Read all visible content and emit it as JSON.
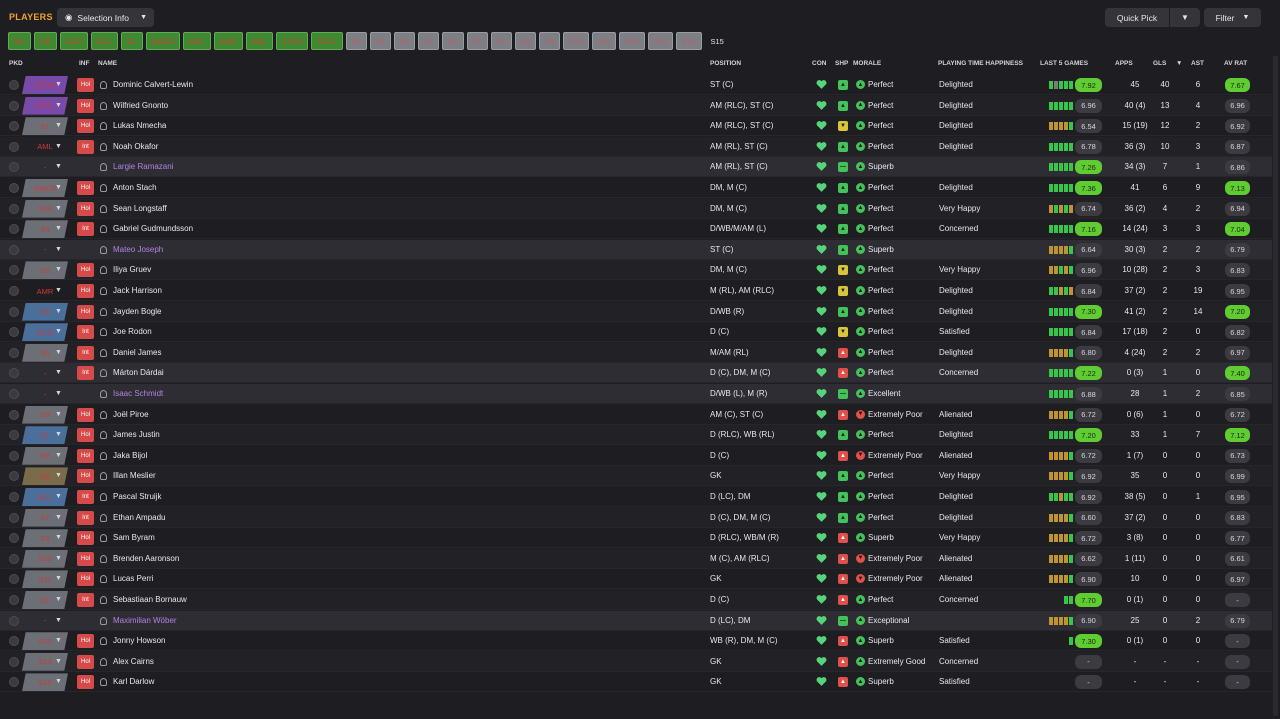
{
  "header": {
    "title": "PLAYERS",
    "selection_label": "Selection Info",
    "quick_pick": "Quick Pick",
    "filter": "Filter"
  },
  "positions": [
    {
      "label": "GK",
      "style": "g"
    },
    {
      "label": "DR",
      "style": "g"
    },
    {
      "label": "DCR",
      "style": "g"
    },
    {
      "label": "DCL",
      "style": "g"
    },
    {
      "label": "DL",
      "style": "g"
    },
    {
      "label": "DMCR",
      "style": "g"
    },
    {
      "label": "MCL",
      "style": "g"
    },
    {
      "label": "AMR",
      "style": "g"
    },
    {
      "label": "AML",
      "style": "g"
    },
    {
      "label": "STCR",
      "style": "g"
    },
    {
      "label": "STCL",
      "style": "g"
    },
    {
      "label": "S1",
      "style": "x"
    },
    {
      "label": "S2",
      "style": "x"
    },
    {
      "label": "S3",
      "style": "x"
    },
    {
      "label": "S4",
      "style": "x"
    },
    {
      "label": "S5",
      "style": "x"
    },
    {
      "label": "S6",
      "style": "x"
    },
    {
      "label": "S7",
      "style": "x"
    },
    {
      "label": "S8",
      "style": "x"
    },
    {
      "label": "S9",
      "style": "x"
    },
    {
      "label": "S10",
      "style": "x"
    },
    {
      "label": "S11",
      "style": "x"
    },
    {
      "label": "S12",
      "style": "x"
    },
    {
      "label": "S13",
      "style": "x"
    },
    {
      "label": "S14",
      "style": "x"
    },
    {
      "label": "S15",
      "style": "s"
    }
  ],
  "columns": {
    "pkd": "PKD",
    "inf": "INF",
    "name": "NAME",
    "position": "POSITION",
    "con": "CON",
    "shp": "SHP",
    "morale": "MORALE",
    "pt_happiness": "PLAYING TIME HAPPINESS",
    "last5": "LAST 5 GAMES",
    "apps": "APPS",
    "gls": "GLS",
    "ast": "AST",
    "av_rat": "AV RAT"
  },
  "colors": {
    "accent": "#f2a32b",
    "rating_high": "#5fcc31",
    "inf_badge": "#d64a4a",
    "loan_name": "#b482e0"
  },
  "players": [
    {
      "pkd": "STCR",
      "pkd_color": "#7a4aa8",
      "inf": "Hol",
      "name": "Dominic Calvert-Lewin",
      "pos": "ST (C)",
      "shp": "up",
      "morale": "Perfect",
      "morale_type": "good",
      "pt": "Delighted",
      "l5": [
        "a",
        "c",
        "a",
        "a",
        "a"
      ],
      "rating": "7.92",
      "rating_hi": true,
      "apps": "45",
      "gls": "40",
      "ast": "6",
      "av": "7.67",
      "av_hi": true,
      "row": ""
    },
    {
      "pkd": "STCL",
      "pkd_color": "#7a4aa8",
      "inf": "Hol",
      "name": "Wilfried Gnonto",
      "pos": "AM (RLC), ST (C)",
      "shp": "up",
      "morale": "Perfect",
      "morale_type": "good",
      "pt": "Delighted",
      "l5": [
        "a",
        "a",
        "a",
        "a",
        "a"
      ],
      "rating": "6.96",
      "rating_hi": false,
      "apps": "40 (4)",
      "gls": "13",
      "ast": "4",
      "av": "6.96",
      "av_hi": false,
      "row": "alt"
    },
    {
      "pkd": "S1",
      "pkd_color": "#6c6f75",
      "inf": "Hol",
      "name": "Lukas Nmecha",
      "pos": "AM (RLC), ST (C)",
      "shp": "down",
      "morale": "Perfect",
      "morale_type": "good",
      "pt": "Delighted",
      "l5": [
        "b",
        "b",
        "b",
        "b",
        "a"
      ],
      "rating": "6.54",
      "rating_hi": false,
      "apps": "15 (19)",
      "gls": "12",
      "ast": "2",
      "av": "6.92",
      "av_hi": false,
      "row": ""
    },
    {
      "pkd": "AML",
      "pkd_color": "none",
      "inf": "Int",
      "name": "Noah Okafor",
      "pos": "AM (RL), ST (C)",
      "shp": "up",
      "morale": "Perfect",
      "morale_type": "good",
      "pt": "Delighted",
      "l5": [
        "a",
        "a",
        "a",
        "a",
        "a"
      ],
      "rating": "6.78",
      "rating_hi": false,
      "apps": "36 (3)",
      "gls": "10",
      "ast": "3",
      "av": "6.87",
      "av_hi": false,
      "row": "alt"
    },
    {
      "pkd": "-",
      "pkd_color": "none",
      "inf": "",
      "name": "Largie Ramazani",
      "pos": "AM (RL), ST (C)",
      "shp": "flat",
      "morale": "Superb",
      "morale_type": "good",
      "pt": "",
      "l5": [
        "a",
        "a",
        "a",
        "a",
        "a"
      ],
      "rating": "7.26",
      "rating_hi": true,
      "apps": "34 (3)",
      "gls": "7",
      "ast": "1",
      "av": "6.86",
      "av_hi": false,
      "row": "gray",
      "loan": true
    },
    {
      "pkd": "DMCR",
      "pkd_color": "#6c6f75",
      "inf": "Hol",
      "name": "Anton Stach",
      "pos": "DM, M (C)",
      "shp": "up",
      "morale": "Perfect",
      "morale_type": "good",
      "pt": "Delighted",
      "l5": [
        "a",
        "a",
        "a",
        "a",
        "a"
      ],
      "rating": "7.36",
      "rating_hi": true,
      "apps": "41",
      "gls": "6",
      "ast": "9",
      "av": "7.13",
      "av_hi": true,
      "row": ""
    },
    {
      "pkd": "S14",
      "pkd_color": "#6c6f75",
      "inf": "Hol",
      "name": "Sean Longstaff",
      "pos": "DM, M (C)",
      "shp": "up",
      "morale": "Perfect",
      "morale_type": "good",
      "pt": "Very Happy",
      "l5": [
        "b",
        "a",
        "b",
        "a",
        "b"
      ],
      "rating": "6.74",
      "rating_hi": false,
      "apps": "36 (2)",
      "gls": "4",
      "ast": "2",
      "av": "6.94",
      "av_hi": false,
      "row": "alt"
    },
    {
      "pkd": "S4",
      "pkd_color": "#6c6f75",
      "inf": "Int",
      "name": "Gabriel Gudmundsson",
      "pos": "D/WB/M/AM (L)",
      "shp": "up",
      "morale": "Perfect",
      "morale_type": "good",
      "pt": "Concerned",
      "l5": [
        "a",
        "a",
        "a",
        "a",
        "a"
      ],
      "rating": "7.16",
      "rating_hi": true,
      "apps": "14 (24)",
      "gls": "3",
      "ast": "3",
      "av": "7.04",
      "av_hi": true,
      "row": ""
    },
    {
      "pkd": "-",
      "pkd_color": "none",
      "inf": "",
      "name": "Mateo Joseph",
      "pos": "ST (C)",
      "shp": "up",
      "morale": "Superb",
      "morale_type": "good",
      "pt": "",
      "l5": [
        "b",
        "b",
        "b",
        "b",
        "a"
      ],
      "rating": "6.64",
      "rating_hi": false,
      "apps": "30 (3)",
      "gls": "2",
      "ast": "2",
      "av": "6.79",
      "av_hi": false,
      "row": "gray",
      "loan": true
    },
    {
      "pkd": "S5",
      "pkd_color": "#6c6f75",
      "inf": "Hol",
      "name": "Iliya Gruev",
      "pos": "DM, M (C)",
      "shp": "down",
      "morale": "Perfect",
      "morale_type": "good",
      "pt": "Very Happy",
      "l5": [
        "b",
        "b",
        "a",
        "b",
        "a"
      ],
      "rating": "6.96",
      "rating_hi": false,
      "apps": "10 (28)",
      "gls": "2",
      "ast": "3",
      "av": "6.83",
      "av_hi": false,
      "row": "alt"
    },
    {
      "pkd": "AMR",
      "pkd_color": "none",
      "inf": "Hol",
      "name": "Jack Harrison",
      "pos": "M (RL), AM (RLC)",
      "shp": "down",
      "morale": "Perfect",
      "morale_type": "good",
      "pt": "Delighted",
      "l5": [
        "a",
        "a",
        "b",
        "a",
        "b"
      ],
      "rating": "6.84",
      "rating_hi": false,
      "apps": "37 (2)",
      "gls": "2",
      "ast": "19",
      "av": "6.95",
      "av_hi": false,
      "row": ""
    },
    {
      "pkd": "DR",
      "pkd_color": "#4a6f9a",
      "inf": "Hol",
      "name": "Jayden Bogle",
      "pos": "D/WB (R)",
      "shp": "up",
      "morale": "Perfect",
      "morale_type": "good",
      "pt": "Delighted",
      "l5": [
        "a",
        "a",
        "a",
        "a",
        "a"
      ],
      "rating": "7.30",
      "rating_hi": true,
      "apps": "41 (2)",
      "gls": "2",
      "ast": "14",
      "av": "7.20",
      "av_hi": true,
      "row": "alt"
    },
    {
      "pkd": "DCR",
      "pkd_color": "#4a6f9a",
      "inf": "Int",
      "name": "Joe Rodon",
      "pos": "D (C)",
      "shp": "down",
      "morale": "Perfect",
      "morale_type": "good",
      "pt": "Satisfied",
      "l5": [
        "a",
        "a",
        "a",
        "a",
        "a"
      ],
      "rating": "6.84",
      "rating_hi": false,
      "apps": "17 (18)",
      "gls": "2",
      "ast": "0",
      "av": "6.82",
      "av_hi": false,
      "row": ""
    },
    {
      "pkd": "S6",
      "pkd_color": "#6c6f75",
      "inf": "Int",
      "name": "Daniel James",
      "pos": "M/AM (RL)",
      "shp": "red",
      "morale": "Perfect",
      "morale_type": "good",
      "pt": "Delighted",
      "l5": [
        "b",
        "b",
        "b",
        "b",
        "a"
      ],
      "rating": "6.80",
      "rating_hi": false,
      "apps": "4 (24)",
      "gls": "2",
      "ast": "2",
      "av": "6.97",
      "av_hi": false,
      "row": "alt"
    },
    {
      "pkd": "-",
      "pkd_color": "none",
      "inf": "Int",
      "name": "Márton Dárdai",
      "pos": "D (C), DM, M (C)",
      "shp": "red",
      "morale": "Perfect",
      "morale_type": "good",
      "pt": "Concerned",
      "l5": [
        "a",
        "a",
        "a",
        "a",
        "a"
      ],
      "rating": "7.22",
      "rating_hi": true,
      "apps": "0 (3)",
      "gls": "1",
      "ast": "0",
      "av": "7.40",
      "av_hi": true,
      "row": "gray"
    },
    {
      "pkd": "-",
      "pkd_color": "none",
      "inf": "",
      "name": "Isaac Schmidt",
      "pos": "D/WB (L), M (R)",
      "shp": "flat",
      "morale": "Excellent",
      "morale_type": "good",
      "pt": "",
      "l5": [
        "a",
        "a",
        "a",
        "a",
        "a"
      ],
      "rating": "6.88",
      "rating_hi": false,
      "apps": "28",
      "gls": "1",
      "ast": "2",
      "av": "6.85",
      "av_hi": false,
      "row": "gray",
      "loan": true
    },
    {
      "pkd": "S9",
      "pkd_color": "#6c6f75",
      "inf": "Hol",
      "name": "Joël Piroe",
      "pos": "AM (C), ST (C)",
      "shp": "red",
      "morale": "Extremely Poor",
      "morale_type": "bad",
      "pt": "Alienated",
      "l5": [
        "b",
        "b",
        "b",
        "b",
        "a"
      ],
      "rating": "6.72",
      "rating_hi": false,
      "apps": "0 (6)",
      "gls": "1",
      "ast": "0",
      "av": "6.72",
      "av_hi": false,
      "row": ""
    },
    {
      "pkd": "DL",
      "pkd_color": "#4a6f9a",
      "inf": "Hol",
      "name": "James Justin",
      "pos": "D (RLC), WB (RL)",
      "shp": "up",
      "morale": "Perfect",
      "morale_type": "good",
      "pt": "Delighted",
      "l5": [
        "a",
        "a",
        "a",
        "a",
        "a"
      ],
      "rating": "7.20",
      "rating_hi": true,
      "apps": "33",
      "gls": "1",
      "ast": "7",
      "av": "7.12",
      "av_hi": true,
      "row": "alt"
    },
    {
      "pkd": "S8",
      "pkd_color": "#6c6f75",
      "inf": "Hol",
      "name": "Jaka Bijol",
      "pos": "D (C)",
      "shp": "red",
      "morale": "Extremely Poor",
      "morale_type": "bad",
      "pt": "Alienated",
      "l5": [
        "b",
        "b",
        "b",
        "b",
        "a"
      ],
      "rating": "6.72",
      "rating_hi": false,
      "apps": "1 (7)",
      "gls": "0",
      "ast": "0",
      "av": "6.73",
      "av_hi": false,
      "row": ""
    },
    {
      "pkd": "GK",
      "pkd_color": "#7a6b4a",
      "inf": "Hol",
      "name": "Illan Meslier",
      "pos": "GK",
      "shp": "up",
      "morale": "Perfect",
      "morale_type": "good",
      "pt": "Very Happy",
      "l5": [
        "b",
        "b",
        "b",
        "b",
        "a"
      ],
      "rating": "6.92",
      "rating_hi": false,
      "apps": "35",
      "gls": "0",
      "ast": "0",
      "av": "6.99",
      "av_hi": false,
      "row": "alt"
    },
    {
      "pkd": "DCL",
      "pkd_color": "#4a6f9a",
      "inf": "Int",
      "name": "Pascal Struijk",
      "pos": "D (LC), DM",
      "shp": "up",
      "morale": "Perfect",
      "morale_type": "good",
      "pt": "Delighted",
      "l5": [
        "a",
        "a",
        "b",
        "a",
        "a"
      ],
      "rating": "6.92",
      "rating_hi": false,
      "apps": "38 (5)",
      "gls": "0",
      "ast": "1",
      "av": "6.95",
      "av_hi": false,
      "row": ""
    },
    {
      "pkd": "S7",
      "pkd_color": "#6c6f75",
      "inf": "Int",
      "name": "Ethan Ampadu",
      "pos": "D (C), DM, M (C)",
      "shp": "up",
      "morale": "Perfect",
      "morale_type": "good",
      "pt": "Delighted",
      "l5": [
        "b",
        "b",
        "b",
        "b",
        "a"
      ],
      "rating": "6.60",
      "rating_hi": false,
      "apps": "37 (2)",
      "gls": "0",
      "ast": "0",
      "av": "6.83",
      "av_hi": false,
      "row": "alt"
    },
    {
      "pkd": "S3",
      "pkd_color": "#6c6f75",
      "inf": "Hol",
      "name": "Sam Byram",
      "pos": "D (RLC), WB/M (R)",
      "shp": "red",
      "morale": "Superb",
      "morale_type": "good",
      "pt": "Very Happy",
      "l5": [
        "b",
        "b",
        "b",
        "b",
        "a"
      ],
      "rating": "6.72",
      "rating_hi": false,
      "apps": "3 (8)",
      "gls": "0",
      "ast": "0",
      "av": "6.77",
      "av_hi": false,
      "row": ""
    },
    {
      "pkd": "S10",
      "pkd_color": "#6c6f75",
      "inf": "Hol",
      "name": "Brenden Aaronson",
      "pos": "M (C), AM (RLC)",
      "shp": "red",
      "morale": "Extremely Poor",
      "morale_type": "bad",
      "pt": "Alienated",
      "l5": [
        "b",
        "b",
        "b",
        "b",
        "a"
      ],
      "rating": "6.62",
      "rating_hi": false,
      "apps": "1 (11)",
      "gls": "0",
      "ast": "0",
      "av": "6.61",
      "av_hi": false,
      "row": "alt"
    },
    {
      "pkd": "S11",
      "pkd_color": "#6c6f75",
      "inf": "Hol",
      "name": "Lucas Perri",
      "pos": "GK",
      "shp": "red",
      "morale": "Extremely Poor",
      "morale_type": "bad",
      "pt": "Alienated",
      "l5": [
        "b",
        "b",
        "b",
        "b",
        "a"
      ],
      "rating": "6.90",
      "rating_hi": false,
      "apps": "10",
      "gls": "0",
      "ast": "0",
      "av": "6.97",
      "av_hi": false,
      "row": ""
    },
    {
      "pkd": "S2",
      "pkd_color": "#6c6f75",
      "inf": "Int",
      "name": "Sebastiaan Bornauw",
      "pos": "D (C)",
      "shp": "red",
      "morale": "Perfect",
      "morale_type": "good",
      "pt": "Concerned",
      "l5": [
        "a",
        "a"
      ],
      "rating": "7.70",
      "rating_hi": true,
      "apps": "0 (1)",
      "gls": "0",
      "ast": "0",
      "av": "-",
      "av_hi": false,
      "row": "alt"
    },
    {
      "pkd": "-",
      "pkd_color": "none",
      "inf": "",
      "name": "Maximilian Wöber",
      "pos": "D (LC), DM",
      "shp": "flat",
      "morale": "Exceptional",
      "morale_type": "good",
      "pt": "",
      "l5": [
        "b",
        "b",
        "b",
        "b",
        "a"
      ],
      "rating": "6.90",
      "rating_hi": false,
      "apps": "25",
      "gls": "0",
      "ast": "2",
      "av": "6.79",
      "av_hi": false,
      "row": "gray",
      "loan": true
    },
    {
      "pkd": "S12",
      "pkd_color": "#6c6f75",
      "inf": "Hol",
      "name": "Jonny Howson",
      "pos": "WB (R), DM, M (C)",
      "shp": "red",
      "morale": "Superb",
      "morale_type": "good",
      "pt": "Satisfied",
      "l5": [
        "a"
      ],
      "rating": "7.30",
      "rating_hi": true,
      "apps": "0 (1)",
      "gls": "0",
      "ast": "0",
      "av": "-",
      "av_hi": false,
      "row": ""
    },
    {
      "pkd": "S13",
      "pkd_color": "#6c6f75",
      "inf": "Hol",
      "name": "Alex Cairns",
      "pos": "GK",
      "shp": "red",
      "morale": "Extremely Good",
      "morale_type": "good",
      "pt": "Concerned",
      "l5": [],
      "rating": "-",
      "rating_hi": false,
      "apps": "-",
      "gls": "-",
      "ast": "-",
      "av": "-",
      "av_hi": false,
      "row": "alt"
    },
    {
      "pkd": "S15",
      "pkd_color": "#6c6f75",
      "inf": "Hol",
      "name": "Karl Darlow",
      "pos": "GK",
      "shp": "red",
      "morale": "Superb",
      "morale_type": "good",
      "pt": "Satisfied",
      "l5": [],
      "rating": "-",
      "rating_hi": false,
      "apps": "-",
      "gls": "-",
      "ast": "-",
      "av": "-",
      "av_hi": false,
      "row": ""
    }
  ]
}
